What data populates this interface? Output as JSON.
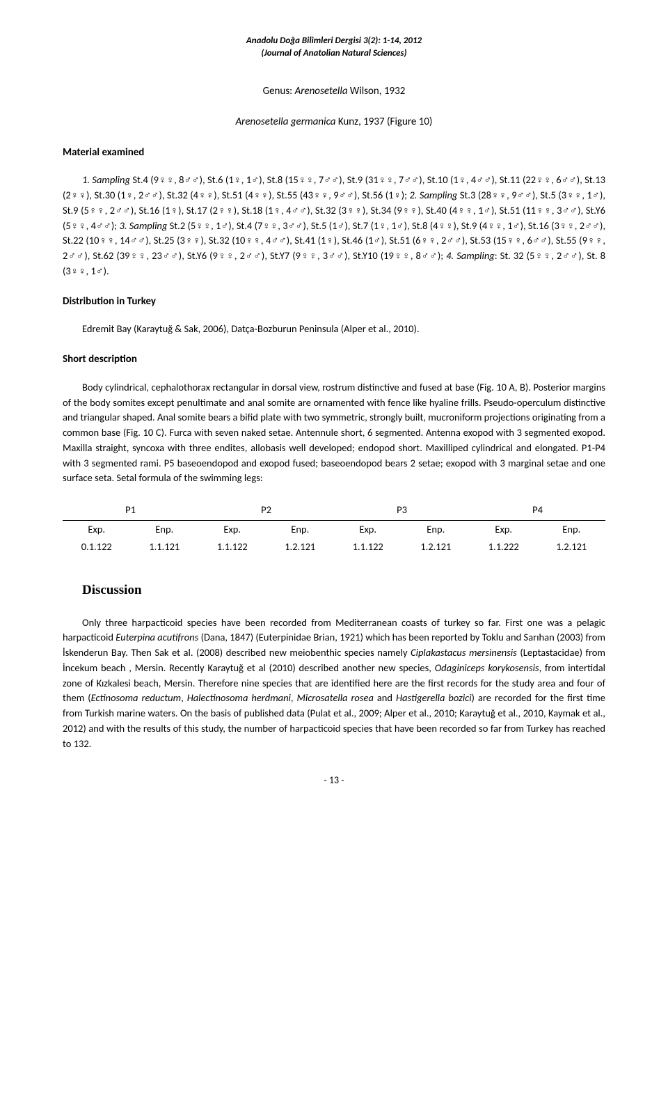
{
  "journal": {
    "line1": "Anadolu Doğa Bilimleri Dergisi 3(2): 1-14, 2012",
    "line2": "(Journal of Anatolian Natural Sciences)"
  },
  "genus_prefix": "Genus: ",
  "genus_italic": "Arenosetella",
  "genus_author": " Wilson, 1932",
  "species_italic": "Arenosetella germanica",
  "species_rest": " Kunz, 1937 (Figure 10)",
  "material_examined_heading": "Material examined",
  "sampling_text_a": "1. Sampling",
  "sampling_text_b": " St.4 (9♀♀, 8♂♂), St.6 (1♀, 1♂), St.8 (15♀♀, 7♂♂), St.9 (31♀♀, 7♂♂), St.10 (1♀, 4♂♂), St.11 (22♀♀, 6♂♂), St.13 (2♀♀), St.30 (1♀, 2♂♂), St.32 (4♀♀), St.51 (4♀♀), St.55 (43♀♀, 9♂♂), St.56 (1♀); ",
  "sampling_text_c": "2. Sampling",
  "sampling_text_d": " St.3 (28♀♀, 9♂♂), St.5 (3♀♀, 1♂), St.9 (5♀♀, 2♂♂), St.16 (1♀), St.17 (2♀♀), St.18 (1♀, 4♂♂), St.32 (3♀♀), St.34 (9♀♀), St.40 (4♀♀, 1♂), St.51 (11♀♀, 3♂♂), St.Y6 (5♀♀, 4♂♂); ",
  "sampling_text_e": "3. Sampling",
  "sampling_text_f": " St.2 (5♀♀, 1♂), St.4 (7♀♀, 3♂♂), St.5 (1♂), St.7 (1♀, 1♂), St.8 (4♀♀), St.9 (4♀♀, 1♂), St.16 (3♀♀, 2♂♂), St.22 (10♀♀, 14♂♂), St.25 (3♀♀), St.32 (10♀♀, 4♂♂), St.41 (1♀), St.46 (1♂), St.51 (6♀♀, 2♂♂), St.53 (15♀♀, 6♂♂), St.55 (9♀♀, 2♂♂), St.62 (39♀♀, 23♂♂), St.Y6 (9♀♀, 2♂♂), St.Y7 (9♀♀, 3♂♂), St.Y10 (19♀♀, 8♂♂); ",
  "sampling_text_g": "4. Sampling",
  "sampling_text_h": ": St. 32 (5♀♀, 2♂♂), St. 8 (3♀♀, 1♂).",
  "dist_heading": "Distribution in Turkey",
  "dist_text": "Edremit Bay (Karaytuğ & Sak, 2006), Datça-Bozburun Peninsula (Alper et al., 2010).",
  "short_desc_heading": "Short description",
  "short_desc_text": "Body cylindrical, cephalothorax rectangular in dorsal view, rostrum distinctive and fused at base (Fig. 10 A, B). Posterior margins of the body somites except penultimate and anal somite are ornamented with fence like hyaline frills. Pseudo-operculum distinctive and triangular shaped. Anal somite bears a bifid plate with two symmetric, strongly built, mucroniform projections originating from a common base (Fig. 10 C). Furca with seven naked setae. Antennule short, 6 segmented. Antenna exopod with 3 segmented exopod. Maxilla straight, syncoxa with three endites, allobasis well developed; endopod short. Maxilliped cylindrical and elongated. P1-P4 with 3 segmented rami. P5 baseoendopod and exopod fused; baseoendopod bears 2 setae; exopod with 3 marginal setae and one surface seta. Setal formula of the swimming legs:",
  "setal_table": {
    "groups": [
      "P1",
      "P2",
      "P3",
      "P4"
    ],
    "subheaders": [
      "Exp.",
      "Enp.",
      "Exp.",
      "Enp.",
      "Exp.",
      "Enp.",
      "Exp.",
      "Enp."
    ],
    "values": [
      "0.1.122",
      "1.1.121",
      "1.1.122",
      "1.2.121",
      "1.1.122",
      "1.2.121",
      "1.1.222",
      "1.2.121"
    ]
  },
  "discussion_heading": "Discussion",
  "discussion_text_a": "Only three harpacticoid species have been recorded from Mediterranean coasts of turkey so far. First one was a pelagic harpacticoid ",
  "discussion_text_b": "Euterpina acutifrons",
  "discussion_text_c": " (Dana, 1847) (Euterpinidae Brian, 1921) which has been reported by Toklu and Sarıhan (2003) from İskenderun Bay. Then Sak et al. (2008) described new meiobenthic species namely ",
  "discussion_text_d": "Ciplakastacus mersinensis",
  "discussion_text_e": " (Leptastacidae) from İncekum beach , Mersin. Recently Karaytuğ et al (2010) described another new species, ",
  "discussion_text_f": "Odaginiceps korykosensis",
  "discussion_text_g": ", from intertidal zone of Kızkalesi beach, Mersin. Therefore nine species that are identified here are the first records for the study area and four of them (",
  "discussion_text_h": "Ectinosoma reductum",
  "discussion_text_i": ", ",
  "discussion_text_j": "Halectinosoma herdmani",
  "discussion_text_k": ", ",
  "discussion_text_l": "Microsatella rosea",
  "discussion_text_m": " and ",
  "discussion_text_n": "Hastigerella bozici",
  "discussion_text_o": ") are recorded for the first time from Turkish marine waters. On the basis of published data (Pulat et al., 2009; Alper et al., 2010; Karaytuğ et al., 2010, Kaymak et al., 2012) and with the results of this study, the number of harpacticoid species that have been recorded so far from Turkey has reached to 132.",
  "page_number": "- 13 -"
}
